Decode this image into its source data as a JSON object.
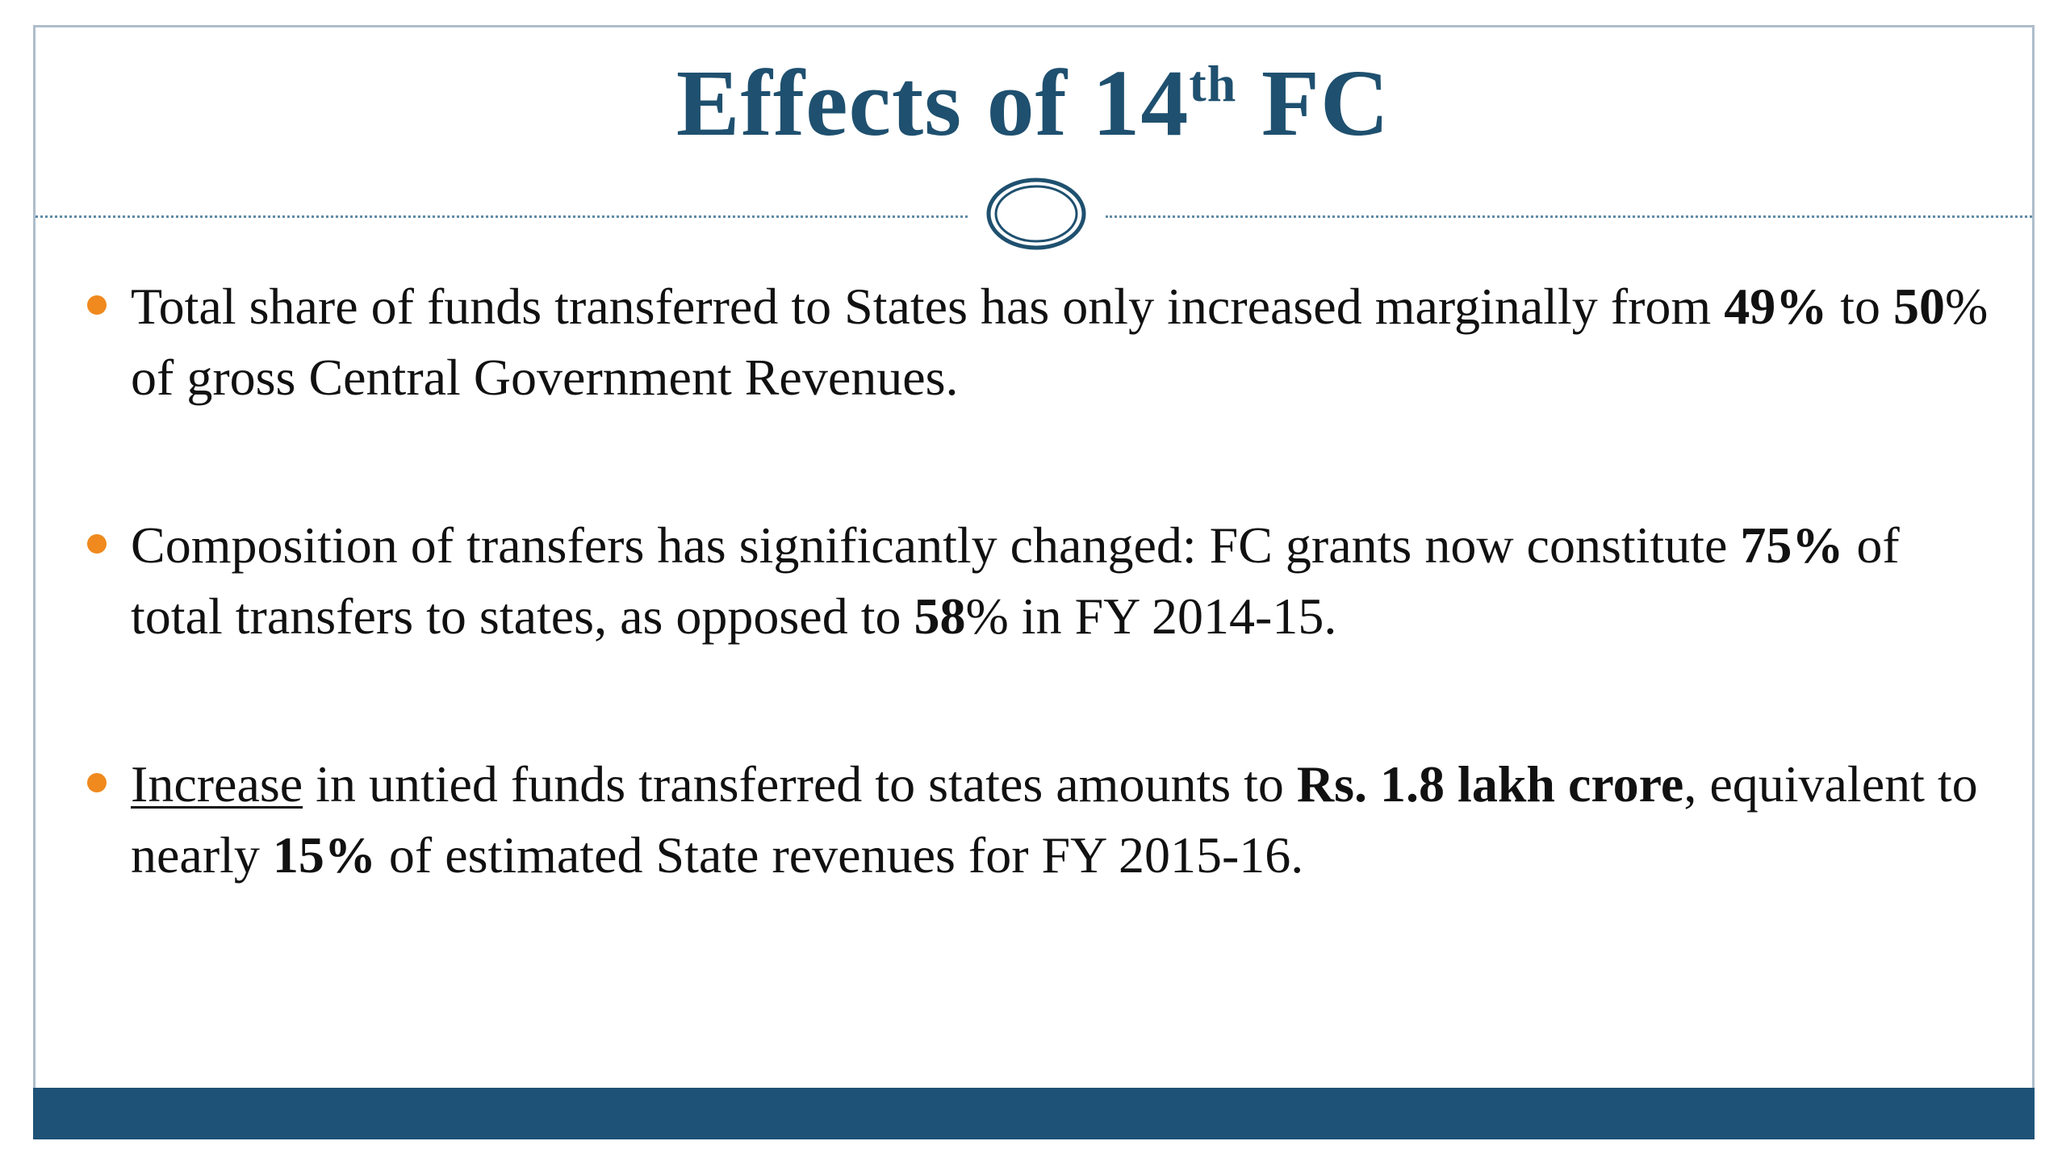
{
  "slide": {
    "title_main": "Effects of 14",
    "title_sup": "th",
    "title_end": " FC",
    "colors": {
      "title": "#1f506f",
      "bullet_dot": "#f0891e",
      "footer_bar": "#1e5277",
      "divider": "#5f8aa6"
    }
  },
  "bullets": [
    {
      "parts": [
        "Total share of funds transferred to States has only increased marginally from ",
        "49%",
        " to ",
        "50",
        "% of gross Central Government Revenues."
      ]
    },
    {
      "parts": [
        "Composition of transfers has significantly changed: FC grants now constitute ",
        "75%",
        " of total transfers to states, as opposed to ",
        "58",
        "% in FY 2014-15."
      ]
    },
    {
      "parts": [
        "Increase",
        " in untied funds transferred to states amounts to ",
        "Rs. 1.8 lakh crore",
        ", equivalent to nearly ",
        "15%",
        " of estimated State revenues for FY 2015-16."
      ]
    }
  ]
}
